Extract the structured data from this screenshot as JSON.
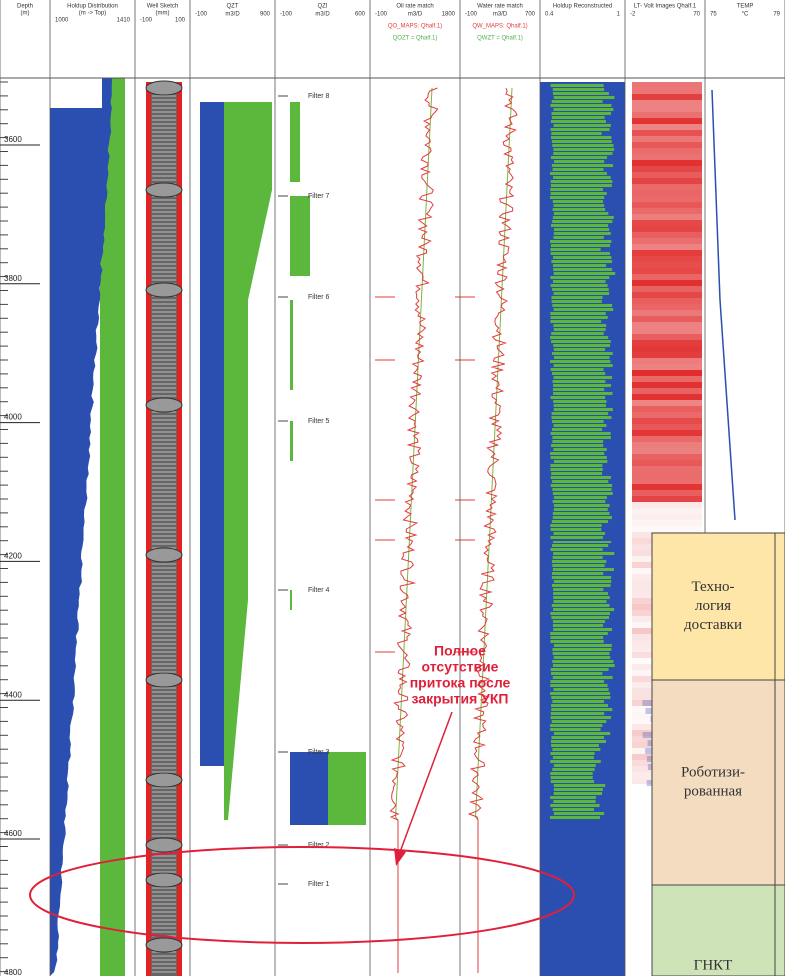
{
  "tracks": [
    {
      "title": "Depth",
      "unit": "(m)"
    },
    {
      "title": "Holdup Distribution",
      "unit": "(m -> Top)",
      "scale": [
        "1000",
        "1410"
      ]
    },
    {
      "title": "Well Sketch",
      "unit": "(mm)",
      "scale": [
        "-100",
        "100"
      ]
    },
    {
      "title": "QZT",
      "scale": [
        "-100",
        "m3/D",
        "900"
      ]
    },
    {
      "title": "QZI",
      "scale": [
        "-100",
        "m3/D",
        "600"
      ]
    },
    {
      "title": "Oil rate match",
      "scale": [
        "-100",
        "m3/D",
        "1800"
      ],
      "legend": [
        "QO_MAPS: Qhalf.1)",
        "QOZT = Qhalf.1)"
      ]
    },
    {
      "title": "Water rate match",
      "scale": [
        "-100",
        "m3/D",
        "700"
      ],
      "legend": [
        "QW_MAPS: Qhalf.1)",
        "QWZT = Qhalf.1)"
      ]
    },
    {
      "title": "Holdup Reconstructed",
      "scale": [
        "0.4",
        "1"
      ]
    },
    {
      "title": "LT- Volt Images Qhalf.1",
      "scale": [
        "-2",
        "70"
      ]
    },
    {
      "title": "TEMP",
      "scale": [
        "75",
        "°C",
        "79"
      ]
    }
  ],
  "depth_labels": [
    "3600",
    "3800",
    "4000",
    "4200",
    "4400",
    "4600",
    "4800"
  ],
  "filters": [
    "Filter 8",
    "Filter 7",
    "Filter 6",
    "Filter 5",
    "Filter 4",
    "Filter 3",
    "Filter 2",
    "Filter 1"
  ],
  "annotation": [
    "Полное",
    "отсутствие",
    "притока после",
    "закрытия УКП"
  ],
  "table": {
    "rows": [
      [
        "Техно-",
        "логия",
        "доставки"
      ],
      [
        "Роботизи-",
        "рованная"
      ],
      [
        "ГНКТ"
      ]
    ]
  }
}
